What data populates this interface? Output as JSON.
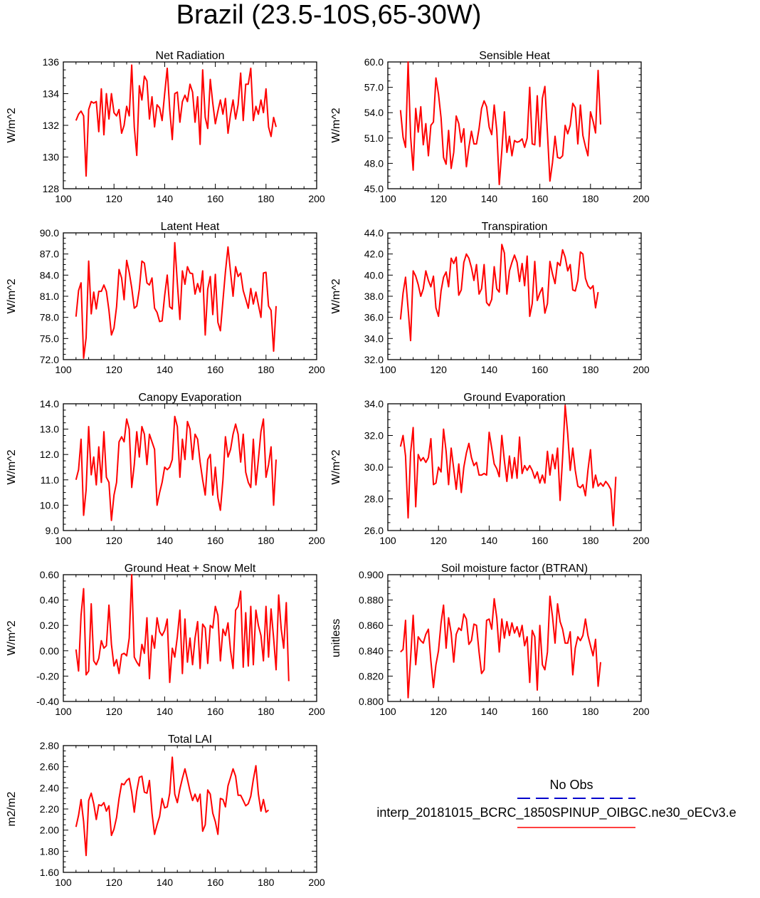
{
  "figure": {
    "title": "Brazil (23.5-10S,65-30W)"
  },
  "legend": {
    "entries": [
      {
        "label": "No Obs",
        "color": "#0000cc",
        "style": "dashed"
      },
      {
        "label": "interp_20181015_BCRC_1850SPINUP_OIBGC.ne30_oECv3.e",
        "color": "#ff0000",
        "style": "solid"
      }
    ]
  },
  "chart_data": [
    {
      "type": "line",
      "title": "Net Radiation",
      "ylabel": "W/m^2",
      "xlim": [
        100,
        200
      ],
      "ylim": [
        128,
        136
      ],
      "xticks": [
        "100",
        "120",
        "140",
        "160",
        "180",
        "200"
      ],
      "yticks": [
        "128",
        "130",
        "132",
        "134",
        "136"
      ],
      "series": [
        {
          "color": "#ff0000",
          "x_start": 105,
          "values": [
            132.3,
            132.7,
            132.9,
            132.6,
            128.8,
            133.0,
            133.5,
            133.4,
            133.5,
            131.6,
            134.3,
            131.4,
            134.0,
            132.4,
            134.0,
            132.8,
            132.6,
            133.0,
            131.5,
            132.0,
            133.2,
            132.6,
            135.8,
            131.9,
            130.1,
            134.5,
            133.6,
            135.1,
            134.8,
            132.4,
            133.8,
            131.9,
            133.3,
            133.1,
            132.3,
            134.0,
            135.6,
            133.0,
            131.1,
            134.0,
            134.1,
            132.2,
            133.5,
            133.9,
            133.5,
            134.6,
            134.1,
            132.2,
            133.8,
            130.8,
            135.5,
            132.5,
            131.8,
            134.9,
            133.4,
            132.1,
            132.9,
            133.6,
            132.7,
            133.7,
            131.5,
            132.7,
            133.6,
            132.4,
            133.3,
            135.3,
            132.3,
            134.6,
            134.6,
            135.6,
            132.3,
            133.2,
            132.7,
            133.6,
            132.8,
            134.3,
            131.9,
            131.3,
            132.5,
            131.9
          ]
        }
      ]
    },
    {
      "type": "line",
      "title": "Sensible Heat",
      "ylabel": "W/m^2",
      "xlim": [
        100,
        200
      ],
      "ylim": [
        45,
        60
      ],
      "xticks": [
        "100",
        "120",
        "140",
        "160",
        "180",
        "200"
      ],
      "yticks": [
        "45.0",
        "48.0",
        "51.0",
        "54.0",
        "57.0",
        "60.0"
      ],
      "series": [
        {
          "color": "#ff0000",
          "x_start": 105,
          "values": [
            54.3,
            51.1,
            49.9,
            60.0,
            51.2,
            47.2,
            54.5,
            51.7,
            54.7,
            50.2,
            52.7,
            48.9,
            52.5,
            52.9,
            58.1,
            56.2,
            53.4,
            48.7,
            47.9,
            51.9,
            47.4,
            49.3,
            53.6,
            52.7,
            50.5,
            52.1,
            47.6,
            49.9,
            51.8,
            50.3,
            50.3,
            52.1,
            54.5,
            55.4,
            54.7,
            52.3,
            51.4,
            54.9,
            51.9,
            45.5,
            49.5,
            54.1,
            49.3,
            51.2,
            48.9,
            50.7,
            50.5,
            50.6,
            50.9,
            49.9,
            51.0,
            57.0,
            50.3,
            50.2,
            56.0,
            50.0,
            55.7,
            57.1,
            51.6,
            45.9,
            48.1,
            51.2,
            48.7,
            48.6,
            48.9,
            52.5,
            51.5,
            52.5,
            55.1,
            54.6,
            50.3,
            54.9,
            51.3,
            50.0,
            48.9,
            54.1,
            53.0,
            51.6,
            59.0,
            52.6
          ]
        }
      ]
    },
    {
      "type": "line",
      "title": "Latent Heat",
      "ylabel": "W/m^2",
      "xlim": [
        100,
        200
      ],
      "ylim": [
        72,
        90
      ],
      "xticks": [
        "100",
        "120",
        "140",
        "160",
        "180",
        "200"
      ],
      "yticks": [
        "72.0",
        "75.0",
        "78.0",
        "81.0",
        "84.0",
        "87.0",
        "90.0"
      ],
      "series": [
        {
          "color": "#ff0000",
          "x_start": 105,
          "values": [
            78.1,
            81.8,
            82.9,
            72.2,
            75.1,
            86.0,
            78.5,
            81.6,
            79.2,
            81.7,
            81.7,
            82.6,
            81.7,
            79.0,
            75.5,
            76.5,
            79.5,
            84.8,
            83.6,
            80.5,
            86.1,
            84.4,
            82.2,
            79.3,
            79.6,
            82.0,
            86.0,
            85.7,
            82.9,
            82.6,
            83.6,
            79.3,
            78.7,
            77.4,
            77.5,
            81.1,
            84.0,
            79.5,
            79.2,
            88.6,
            82.9,
            77.7,
            84.6,
            82.7,
            85.2,
            84.3,
            84.2,
            81.3,
            82.8,
            81.6,
            84.6,
            75.5,
            82.0,
            83.8,
            78.4,
            84.1,
            77.3,
            76.1,
            80.4,
            84.5,
            88.0,
            84.4,
            81.0,
            85.2,
            83.8,
            84.3,
            81.8,
            80.6,
            79.3,
            82.1,
            79.9,
            81.6,
            79.8,
            78.0,
            84.3,
            84.4,
            79.6,
            79.0,
            73.2,
            79.6
          ]
        }
      ]
    },
    {
      "type": "line",
      "title": "Transpiration",
      "ylabel": "W/m^2",
      "xlim": [
        100,
        200
      ],
      "ylim": [
        32,
        44
      ],
      "xticks": [
        "100",
        "120",
        "140",
        "160",
        "180",
        "200"
      ],
      "yticks": [
        "32.0",
        "34.0",
        "36.0",
        "38.0",
        "40.0",
        "42.0",
        "44.0"
      ],
      "series": [
        {
          "color": "#ff0000",
          "x_start": 105,
          "values": [
            35.8,
            38.3,
            39.8,
            36.8,
            33.8,
            40.4,
            39.9,
            39.1,
            38.0,
            38.7,
            40.4,
            39.5,
            38.9,
            39.9,
            36.9,
            36.1,
            38.5,
            39.8,
            40.3,
            38.9,
            41.6,
            41.1,
            41.7,
            38.1,
            38.6,
            41.2,
            42.0,
            41.6,
            40.7,
            39.5,
            41.0,
            38.2,
            38.7,
            41.0,
            37.4,
            37.1,
            37.7,
            40.8,
            38.7,
            38.4,
            42.9,
            42.1,
            38.2,
            40.4,
            41.2,
            41.9,
            41.2,
            39.4,
            41.1,
            39.0,
            41.8,
            36.1,
            37.3,
            41.3,
            37.6,
            38.3,
            38.8,
            36.4,
            37.3,
            41.3,
            40.1,
            39.2,
            41.2,
            40.9,
            42.4,
            41.7,
            40.4,
            41.0,
            38.6,
            38.5,
            39.5,
            42.2,
            42.0,
            39.7,
            39.0,
            38.7,
            39.0,
            36.9,
            38.4
          ]
        }
      ]
    },
    {
      "type": "line",
      "title": "Canopy Evaporation",
      "ylabel": "W/m^2",
      "xlim": [
        100,
        200
      ],
      "ylim": [
        9,
        14
      ],
      "xticks": [
        "100",
        "120",
        "140",
        "160",
        "180",
        "200"
      ],
      "yticks": [
        "9.0",
        "10.0",
        "11.0",
        "12.0",
        "13.0",
        "14.0"
      ],
      "series": [
        {
          "color": "#ff0000",
          "x_start": 105,
          "values": [
            11.0,
            11.4,
            12.6,
            9.6,
            10.6,
            13.1,
            11.2,
            11.9,
            10.8,
            12.3,
            10.9,
            12.9,
            11.1,
            10.9,
            9.4,
            10.4,
            10.9,
            12.5,
            12.7,
            12.5,
            13.4,
            13.0,
            10.7,
            11.6,
            12.9,
            11.9,
            13.1,
            12.8,
            11.6,
            12.8,
            12.5,
            12.2,
            10.0,
            10.5,
            10.9,
            11.5,
            11.4,
            11.5,
            11.8,
            13.5,
            13.1,
            11.1,
            12.6,
            11.8,
            13.3,
            13.0,
            11.8,
            12.8,
            12.6,
            11.7,
            11.0,
            10.4,
            11.8,
            12.0,
            10.4,
            11.5,
            10.3,
            9.8,
            11.0,
            12.7,
            11.9,
            12.2,
            12.8,
            13.2,
            12.8,
            11.7,
            12.8,
            11.3,
            10.9,
            10.7,
            12.6,
            10.8,
            11.8,
            12.9,
            13.4,
            11.1,
            11.6,
            12.3,
            10.0,
            11.8
          ]
        }
      ]
    },
    {
      "type": "line",
      "title": "Ground Evaporation",
      "ylabel": "W/m^2",
      "xlim": [
        100,
        200
      ],
      "ylim": [
        26,
        34
      ],
      "xticks": [
        "100",
        "120",
        "140",
        "160",
        "180",
        "200"
      ],
      "yticks": [
        "26.0",
        "28.0",
        "30.0",
        "32.0",
        "34.0"
      ],
      "series": [
        {
          "color": "#ff0000",
          "x_start": 105,
          "values": [
            31.3,
            32.0,
            30.7,
            26.8,
            30.9,
            32.5,
            27.5,
            30.8,
            30.4,
            30.6,
            30.3,
            30.6,
            31.8,
            28.9,
            29.0,
            30.0,
            29.7,
            32.4,
            31.0,
            28.9,
            31.2,
            29.9,
            28.6,
            30.2,
            28.4,
            30.0,
            30.9,
            31.5,
            30.6,
            30.1,
            30.3,
            29.5,
            29.5,
            29.6,
            29.5,
            32.2,
            31.2,
            30.2,
            29.9,
            29.4,
            32.0,
            30.4,
            29.1,
            30.7,
            29.3,
            30.6,
            29.3,
            31.9,
            29.6,
            30.1,
            29.8,
            30.1,
            29.8,
            29.3,
            29.7,
            29.0,
            29.5,
            29.0,
            31.0,
            29.5,
            30.8,
            29.9,
            31.2,
            27.9,
            30.6,
            33.9,
            32.1,
            29.8,
            31.2,
            29.8,
            28.8,
            28.7,
            28.9,
            28.2,
            29.8,
            31.1,
            28.7,
            29.5,
            28.8,
            29.0,
            28.8,
            29.1,
            28.9,
            28.6,
            26.3,
            29.4
          ]
        }
      ]
    },
    {
      "type": "line",
      "title": "Ground Heat + Snow Melt",
      "ylabel": "W/m^2",
      "xlim": [
        100,
        200
      ],
      "ylim": [
        -0.4,
        0.6
      ],
      "xticks": [
        "100",
        "120",
        "140",
        "160",
        "180",
        "200"
      ],
      "yticks": [
        "-0.40",
        "-0.20",
        "0.00",
        "0.20",
        "0.40",
        "0.60"
      ],
      "series": [
        {
          "color": "#ff0000",
          "x_start": 105,
          "values": [
            0.01,
            -0.16,
            0.28,
            0.49,
            -0.19,
            -0.16,
            0.37,
            -0.08,
            -0.11,
            -0.06,
            0.08,
            0.02,
            0.04,
            0.36,
            0.05,
            -0.12,
            -0.07,
            -0.18,
            -0.03,
            -0.02,
            -0.04,
            0.1,
            0.6,
            -0.05,
            -0.09,
            -0.12,
            0.05,
            -0.02,
            0.26,
            -0.22,
            0.12,
            0.02,
            0.26,
            0.15,
            0.12,
            0.16,
            0.25,
            -0.25,
            0.02,
            -0.05,
            0.11,
            0.32,
            -0.18,
            0.25,
            -0.09,
            0.1,
            -0.11,
            0.1,
            0.23,
            -0.14,
            0.21,
            0.18,
            -0.1,
            0.2,
            0.18,
            0.35,
            0.28,
            -0.08,
            0.17,
            0.12,
            0.22,
            0.0,
            -0.14,
            0.32,
            0.35,
            0.47,
            -0.13,
            0.3,
            -0.12,
            0.35,
            -0.11,
            0.32,
            0.2,
            0.12,
            -0.08,
            0.35,
            -0.05,
            0.33,
            0.1,
            -0.15,
            0.44,
            0.17,
            0.02,
            0.38,
            -0.24
          ]
        }
      ]
    },
    {
      "type": "line",
      "title": "Soil moisture factor (BTRAN)",
      "ylabel": "unitless",
      "xlim": [
        100,
        200
      ],
      "ylim": [
        0.8,
        0.9
      ],
      "xticks": [
        "100",
        "120",
        "140",
        "160",
        "180",
        "200"
      ],
      "yticks": [
        "0.800",
        "0.820",
        "0.840",
        "0.860",
        "0.880",
        "0.900"
      ],
      "series": [
        {
          "color": "#ff0000",
          "x_start": 105,
          "values": [
            0.839,
            0.841,
            0.864,
            0.803,
            0.834,
            0.868,
            0.829,
            0.851,
            0.848,
            0.846,
            0.853,
            0.857,
            0.832,
            0.811,
            0.829,
            0.84,
            0.862,
            0.876,
            0.842,
            0.866,
            0.854,
            0.831,
            0.853,
            0.858,
            0.856,
            0.869,
            0.865,
            0.845,
            0.848,
            0.861,
            0.86,
            0.839,
            0.822,
            0.825,
            0.864,
            0.865,
            0.857,
            0.881,
            0.866,
            0.839,
            0.865,
            0.85,
            0.863,
            0.852,
            0.862,
            0.854,
            0.859,
            0.851,
            0.86,
            0.844,
            0.851,
            0.815,
            0.856,
            0.851,
            0.809,
            0.86,
            0.829,
            0.825,
            0.839,
            0.883,
            0.867,
            0.846,
            0.877,
            0.863,
            0.857,
            0.846,
            0.846,
            0.855,
            0.821,
            0.842,
            0.851,
            0.848,
            0.852,
            0.865,
            0.852,
            0.844,
            0.836,
            0.849,
            0.812,
            0.831
          ]
        }
      ]
    },
    {
      "type": "line",
      "title": "Total LAI",
      "ylabel": "m2/m2",
      "xlim": [
        100,
        200
      ],
      "ylim": [
        1.6,
        2.8
      ],
      "xticks": [
        "100",
        "120",
        "140",
        "160",
        "180",
        "200"
      ],
      "yticks": [
        "1.60",
        "1.80",
        "2.00",
        "2.20",
        "2.40",
        "2.60",
        "2.80"
      ],
      "series": [
        {
          "color": "#ff0000",
          "x_start": 105,
          "values": [
            2.03,
            2.14,
            2.29,
            2.08,
            1.76,
            2.28,
            2.35,
            2.25,
            2.1,
            2.24,
            2.23,
            2.26,
            2.18,
            2.23,
            1.95,
            2.01,
            2.12,
            2.3,
            2.44,
            2.43,
            2.47,
            2.49,
            2.36,
            2.17,
            2.37,
            2.5,
            2.51,
            2.36,
            2.35,
            2.47,
            2.16,
            1.96,
            2.05,
            2.13,
            2.3,
            2.21,
            2.22,
            2.35,
            2.69,
            2.34,
            2.26,
            2.39,
            2.49,
            2.58,
            2.48,
            2.37,
            2.28,
            2.34,
            2.27,
            2.34,
            1.99,
            2.05,
            2.38,
            2.34,
            2.16,
            2.08,
            1.96,
            2.3,
            2.29,
            2.22,
            2.42,
            2.5,
            2.58,
            2.51,
            2.33,
            2.33,
            2.28,
            2.23,
            2.25,
            2.32,
            2.48,
            2.61,
            2.34,
            2.18,
            2.29,
            2.17,
            2.19
          ]
        }
      ]
    }
  ]
}
